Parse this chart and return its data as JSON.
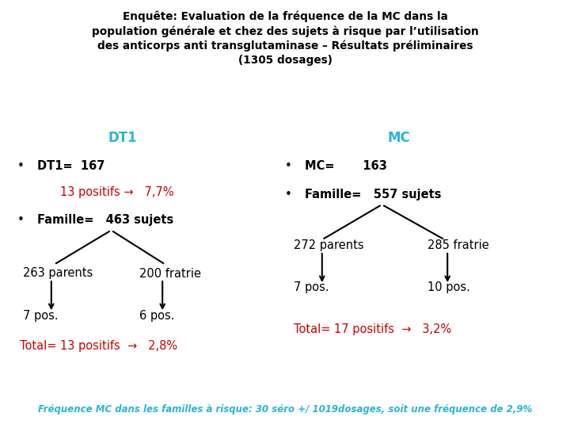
{
  "title_line1": "Enquête: Evaluation de la fréquence de la MC dans la",
  "title_line2": "population générale et chez des sujets à risque par l’utilisation",
  "title_line3": "des anticorps anti transglutaminase – Résultats préliminaires",
  "title_line4": "(1305 dosages)",
  "bg_color": "#ffffff",
  "title_color": "#000000",
  "header_color": "#29b6d4",
  "black": "#000000",
  "red": "#cc0000",
  "cyan_footer": "#29b6d4",
  "footer_text": "Fréquence MC dans les familles à risque: 30 séro +/ 1019dosages, soit une fréquence de 2,9%"
}
